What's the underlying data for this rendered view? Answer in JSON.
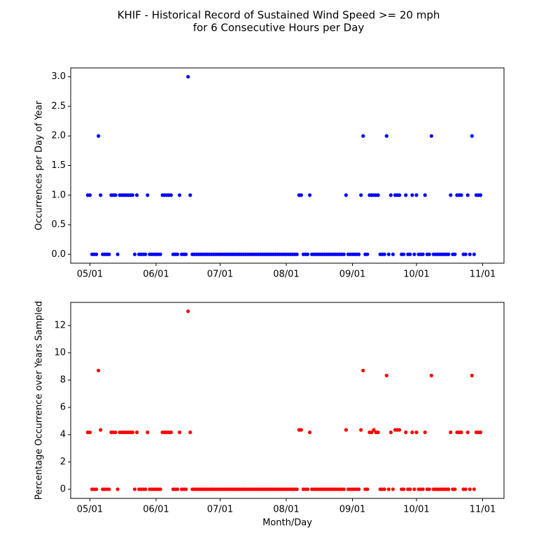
{
  "title": [
    "KHIF - Historical Record of Sustained Wind Speed >= 20 mph",
    "for 6 Consecutive Hours per Day"
  ],
  "chart_data": [
    {
      "type": "scatter",
      "ylabel": "Occurrences per Day of Year",
      "color": "#0000ff",
      "x": [
        "04/30",
        "05/01",
        "05/02",
        "05/03",
        "05/04",
        "05/05",
        "05/06",
        "05/07",
        "05/08",
        "05/09",
        "05/10",
        "05/11",
        "05/12",
        "05/13",
        "05/14",
        "05/15",
        "05/16",
        "05/17",
        "05/18",
        "05/19",
        "05/20",
        "05/21",
        "05/22",
        "05/23",
        "05/24",
        "05/25",
        "05/26",
        "05/27",
        "05/28",
        "05/29",
        "05/30",
        "05/31",
        "06/01",
        "06/02",
        "06/03",
        "06/04",
        "06/05",
        "06/06",
        "06/07",
        "06/08",
        "06/09",
        "06/10",
        "06/11",
        "06/12",
        "06/13",
        "06/14",
        "06/15",
        "06/16",
        "06/17",
        "06/18",
        "06/19",
        "06/20",
        "06/21",
        "06/22",
        "06/23",
        "06/24",
        "06/25",
        "06/26",
        "06/27",
        "06/28",
        "06/29",
        "06/30",
        "07/01",
        "07/02",
        "07/03",
        "07/04",
        "07/05",
        "07/06",
        "07/07",
        "07/08",
        "07/09",
        "07/10",
        "07/11",
        "07/12",
        "07/13",
        "07/14",
        "07/15",
        "07/16",
        "07/17",
        "07/18",
        "07/19",
        "07/20",
        "07/21",
        "07/22",
        "07/23",
        "07/24",
        "07/25",
        "07/26",
        "07/27",
        "07/28",
        "07/29",
        "07/30",
        "07/31",
        "08/01",
        "08/02",
        "08/03",
        "08/04",
        "08/05",
        "08/06",
        "08/07",
        "08/08",
        "08/09",
        "08/10",
        "08/11",
        "08/12",
        "08/13",
        "08/14",
        "08/15",
        "08/16",
        "08/17",
        "08/18",
        "08/19",
        "08/20",
        "08/21",
        "08/22",
        "08/23",
        "08/24",
        "08/25",
        "08/26",
        "08/27",
        "08/28",
        "08/29",
        "08/30",
        "08/31",
        "09/01",
        "09/02",
        "09/03",
        "09/04",
        "09/05",
        "09/06",
        "09/07",
        "09/08",
        "09/09",
        "09/10",
        "09/11",
        "09/12",
        "09/13",
        "09/14",
        "09/15",
        "09/16",
        "09/17",
        "09/18",
        "09/19",
        "09/20",
        "09/21",
        "09/22",
        "09/23",
        "09/24",
        "09/25",
        "09/26",
        "09/27",
        "09/28",
        "09/29",
        "09/30",
        "10/01",
        "10/02",
        "10/03",
        "10/04",
        "10/05",
        "10/06",
        "10/07",
        "10/08",
        "10/09",
        "10/10",
        "10/11",
        "10/12",
        "10/13",
        "10/14",
        "10/15",
        "10/16",
        "10/17",
        "10/18",
        "10/19",
        "10/20",
        "10/21",
        "10/22",
        "10/23",
        "10/24",
        "10/25",
        "10/26",
        "10/27",
        "10/28",
        "10/29",
        "10/30",
        "10/31"
      ],
      "values": [
        1,
        1,
        0,
        0,
        0,
        2,
        1,
        0,
        0,
        0,
        0,
        1,
        1,
        1,
        0,
        1,
        1,
        1,
        1,
        1,
        1,
        1,
        0,
        1,
        0,
        0,
        0,
        0,
        1,
        0,
        0,
        0,
        0,
        0,
        0,
        1,
        1,
        1,
        1,
        1,
        0,
        0,
        0,
        1,
        0,
        0,
        0,
        3,
        1,
        0,
        0,
        0,
        0,
        0,
        0,
        0,
        0,
        0,
        0,
        0,
        0,
        0,
        0,
        0,
        0,
        0,
        0,
        0,
        0,
        0,
        0,
        0,
        0,
        0,
        0,
        0,
        0,
        0,
        0,
        0,
        0,
        0,
        0,
        0,
        0,
        0,
        0,
        0,
        0,
        0,
        0,
        0,
        0,
        0,
        0,
        0,
        0,
        0,
        0,
        1,
        1,
        0,
        0,
        0,
        1,
        0,
        0,
        0,
        0,
        0,
        0,
        0,
        0,
        0,
        0,
        0,
        0,
        0,
        0,
        0,
        0,
        1,
        0,
        0,
        0,
        0,
        0,
        0,
        1,
        2,
        0,
        0,
        1,
        1,
        1,
        1,
        1,
        0,
        0,
        0,
        2,
        0,
        1,
        0,
        1,
        1,
        1,
        0,
        0,
        1,
        0,
        0,
        1,
        0,
        1,
        0,
        0,
        0,
        1,
        0,
        0,
        2,
        0,
        0,
        0,
        0,
        0,
        0,
        0,
        0,
        1,
        0,
        0,
        1,
        1,
        1,
        0,
        0,
        1,
        0,
        2,
        0,
        1,
        1,
        1
      ],
      "xlim": [
        "04/22",
        "11/11"
      ],
      "xticks": [
        "05/01",
        "06/01",
        "07/01",
        "08/01",
        "09/01",
        "10/01",
        "11/01"
      ],
      "ylim": [
        -0.15,
        3.15
      ],
      "yticks": [
        {
          "value": 0,
          "label": "0.0"
        },
        0.5,
        {
          "value": 1,
          "label": "1.0"
        },
        1.5,
        {
          "value": 2,
          "label": "2.0"
        },
        2.5,
        {
          "value": 3,
          "label": "3.0"
        }
      ]
    },
    {
      "type": "scatter",
      "ylabel": "Percentage Occurrence over Years Sampled",
      "xlabel": "Month/Day",
      "color": "#ff0000",
      "x": [
        "04/30",
        "05/01",
        "05/02",
        "05/03",
        "05/04",
        "05/05",
        "05/06",
        "05/07",
        "05/08",
        "05/09",
        "05/10",
        "05/11",
        "05/12",
        "05/13",
        "05/14",
        "05/15",
        "05/16",
        "05/17",
        "05/18",
        "05/19",
        "05/20",
        "05/21",
        "05/22",
        "05/23",
        "05/24",
        "05/25",
        "05/26",
        "05/27",
        "05/28",
        "05/29",
        "05/30",
        "05/31",
        "06/01",
        "06/02",
        "06/03",
        "06/04",
        "06/05",
        "06/06",
        "06/07",
        "06/08",
        "06/09",
        "06/10",
        "06/11",
        "06/12",
        "06/13",
        "06/14",
        "06/15",
        "06/16",
        "06/17",
        "06/18",
        "06/19",
        "06/20",
        "06/21",
        "06/22",
        "06/23",
        "06/24",
        "06/25",
        "06/26",
        "06/27",
        "06/28",
        "06/29",
        "06/30",
        "07/01",
        "07/02",
        "07/03",
        "07/04",
        "07/05",
        "07/06",
        "07/07",
        "07/08",
        "07/09",
        "07/10",
        "07/11",
        "07/12",
        "07/13",
        "07/14",
        "07/15",
        "07/16",
        "07/17",
        "07/18",
        "07/19",
        "07/20",
        "07/21",
        "07/22",
        "07/23",
        "07/24",
        "07/25",
        "07/26",
        "07/27",
        "07/28",
        "07/29",
        "07/30",
        "07/31",
        "08/01",
        "08/02",
        "08/03",
        "08/04",
        "08/05",
        "08/06",
        "08/07",
        "08/08",
        "08/09",
        "08/10",
        "08/11",
        "08/12",
        "08/13",
        "08/14",
        "08/15",
        "08/16",
        "08/17",
        "08/18",
        "08/19",
        "08/20",
        "08/21",
        "08/22",
        "08/23",
        "08/24",
        "08/25",
        "08/26",
        "08/27",
        "08/28",
        "08/29",
        "08/30",
        "08/31",
        "09/01",
        "09/02",
        "09/03",
        "09/04",
        "09/05",
        "09/06",
        "09/07",
        "09/08",
        "09/09",
        "09/10",
        "09/11",
        "09/12",
        "09/13",
        "09/14",
        "09/15",
        "09/16",
        "09/17",
        "09/18",
        "09/19",
        "09/20",
        "09/21",
        "09/22",
        "09/23",
        "09/24",
        "09/25",
        "09/26",
        "09/27",
        "09/28",
        "09/29",
        "09/30",
        "10/01",
        "10/02",
        "10/03",
        "10/04",
        "10/05",
        "10/06",
        "10/07",
        "10/08",
        "10/09",
        "10/10",
        "10/11",
        "10/12",
        "10/13",
        "10/14",
        "10/15",
        "10/16",
        "10/17",
        "10/18",
        "10/19",
        "10/20",
        "10/21",
        "10/22",
        "10/23",
        "10/24",
        "10/25",
        "10/26",
        "10/27",
        "10/28",
        "10/29",
        "10/30",
        "10/31"
      ],
      "values": [
        4.17,
        4.17,
        0,
        0,
        0,
        8.7,
        4.35,
        0,
        0,
        0,
        0,
        4.17,
        4.17,
        4.17,
        0,
        4.17,
        4.17,
        4.17,
        4.17,
        4.17,
        4.17,
        4.17,
        0,
        4.17,
        0,
        0,
        0,
        0,
        4.17,
        0,
        0,
        0,
        0,
        0,
        0,
        4.17,
        4.17,
        4.17,
        4.17,
        4.17,
        0,
        0,
        0,
        4.17,
        0,
        0,
        0,
        13.04,
        4.17,
        0,
        0,
        0,
        0,
        0,
        0,
        0,
        0,
        0,
        0,
        0,
        0,
        0,
        0,
        0,
        0,
        0,
        0,
        0,
        0,
        0,
        0,
        0,
        0,
        0,
        0,
        0,
        0,
        0,
        0,
        0,
        0,
        0,
        0,
        0,
        0,
        0,
        0,
        0,
        0,
        0,
        0,
        0,
        0,
        0,
        0,
        0,
        0,
        0,
        0,
        4.35,
        4.35,
        0,
        0,
        0,
        4.17,
        0,
        0,
        0,
        0,
        0,
        0,
        0,
        0,
        0,
        0,
        0,
        0,
        0,
        0,
        0,
        0,
        4.35,
        0,
        0,
        0,
        0,
        0,
        0,
        4.35,
        8.7,
        0,
        0,
        4.17,
        4.17,
        4.35,
        4.17,
        4.17,
        0,
        0,
        0,
        8.33,
        0,
        4.17,
        0,
        4.35,
        4.35,
        4.35,
        0,
        0,
        4.17,
        0,
        0,
        4.17,
        0,
        4.17,
        0,
        0,
        0,
        4.17,
        0,
        0,
        8.33,
        0,
        0,
        0,
        0,
        0,
        0,
        0,
        0,
        4.17,
        0,
        0,
        4.17,
        4.17,
        4.17,
        0,
        0,
        4.17,
        0,
        8.33,
        0,
        4.17,
        4.17,
        4.17
      ],
      "xlim": [
        "04/22",
        "11/11"
      ],
      "xticks": [
        "05/01",
        "06/01",
        "07/01",
        "08/01",
        "09/01",
        "10/01",
        "11/01"
      ],
      "ylim": [
        -0.67,
        13.69
      ],
      "yticks": [
        0,
        2,
        4,
        6,
        8,
        10,
        12
      ]
    }
  ]
}
